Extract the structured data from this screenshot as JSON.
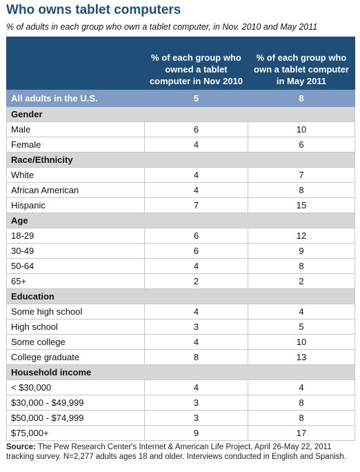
{
  "title": "Who owns tablet computers",
  "subtitle": "% of adults in each group who own a tablet computer, in Nov. 2010 and May 2011",
  "footer": {
    "label": "Source:",
    "text": " The Pew Research Center's Internet & American Life Project, April 26-May 22, 2011 tracking survey. N=2,277 adults ages 18 and older. Interviews conducted in English and Spanish."
  },
  "chart_data": {
    "type": "table",
    "title": "Who owns tablet computers",
    "columns": [
      "% of each group who owned a tablet computer in Nov 2010",
      "% of each group who own a tablet computer in May 2011"
    ],
    "total": {
      "label": "All adults in the U.S.",
      "values": [
        5,
        8
      ]
    },
    "groups": [
      {
        "name": "Gender",
        "rows": [
          {
            "label": "Male",
            "values": [
              6,
              10
            ]
          },
          {
            "label": "Female",
            "values": [
              4,
              6
            ]
          }
        ]
      },
      {
        "name": "Race/Ethnicity",
        "rows": [
          {
            "label": "White",
            "values": [
              4,
              7
            ]
          },
          {
            "label": "African American",
            "values": [
              4,
              8
            ]
          },
          {
            "label": "Hispanic",
            "values": [
              7,
              15
            ]
          }
        ]
      },
      {
        "name": "Age",
        "rows": [
          {
            "label": "18-29",
            "values": [
              6,
              12
            ]
          },
          {
            "label": "30-49",
            "values": [
              6,
              9
            ]
          },
          {
            "label": "50-64",
            "values": [
              4,
              8
            ]
          },
          {
            "label": "65+",
            "values": [
              2,
              2
            ]
          }
        ]
      },
      {
        "name": "Education",
        "rows": [
          {
            "label": "Some high school",
            "values": [
              4,
              4
            ]
          },
          {
            "label": "High school",
            "values": [
              3,
              5
            ]
          },
          {
            "label": "Some college",
            "values": [
              4,
              10
            ]
          },
          {
            "label": "College graduate",
            "values": [
              8,
              13
            ]
          }
        ]
      },
      {
        "name": "Household income",
        "rows": [
          {
            "label": "< $30,000",
            "values": [
              4,
              4
            ]
          },
          {
            "label": "$30,000 - $49,999",
            "values": [
              3,
              8
            ]
          },
          {
            "label": "$50,000 - $74,999",
            "values": [
              3,
              8
            ]
          },
          {
            "label": "$75,000+",
            "values": [
              9,
              17
            ]
          }
        ]
      }
    ]
  }
}
